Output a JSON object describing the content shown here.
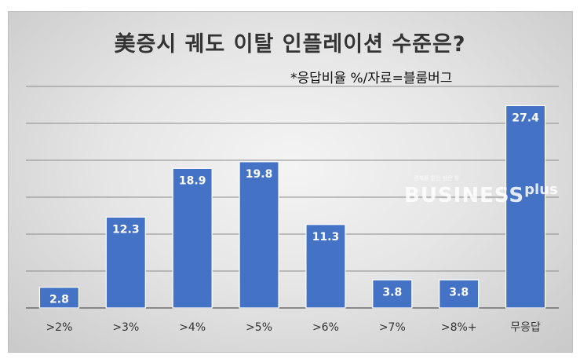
{
  "chart_data": {
    "type": "bar",
    "title": "美증시 궤도 이탈 인플레이션 수준은?",
    "subtitle": "*응답비율 %/자료=블룸버그",
    "categories": [
      ">2%",
      ">3%",
      ">4%",
      ">5%",
      ">6%",
      ">7%",
      ">8%+",
      "무응답"
    ],
    "values": [
      2.8,
      12.3,
      18.9,
      19.8,
      11.3,
      3.8,
      3.8,
      27.4
    ],
    "ylim": [
      0,
      30
    ],
    "grid": true,
    "bar_color": "#4472C4",
    "label_color": "#ffffff"
  },
  "watermark": {
    "tagline": "경제를 읽는 참은 창",
    "brand": "BUSINESS",
    "suffix": "plus"
  }
}
